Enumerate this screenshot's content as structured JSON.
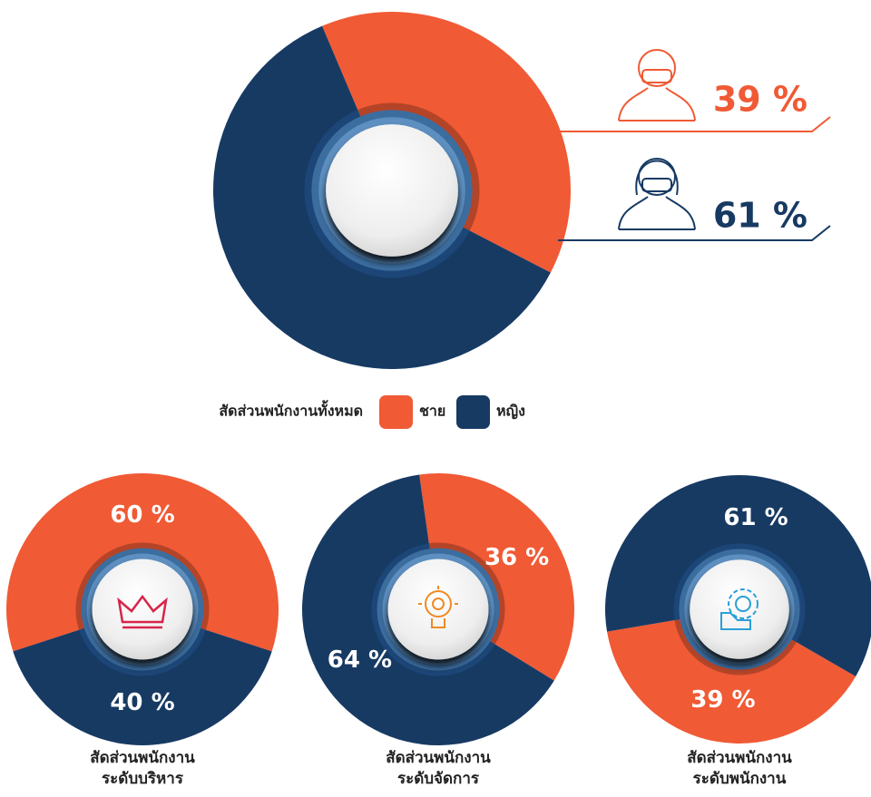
{
  "chart_data": [
    {
      "type": "pie",
      "title": "สัดส่วนพนักงานทั้งหมด",
      "categories": [
        "ชาย",
        "หญิง"
      ],
      "values": [
        39,
        61
      ],
      "value_labels": [
        "39 %",
        "61 %"
      ],
      "colors": [
        "#f05a35",
        "#173a63"
      ],
      "legend": "bottom"
    },
    {
      "type": "pie",
      "title": [
        "สัดส่วนพนักงาน",
        "ระดับบริหาร"
      ],
      "values": [
        60,
        40
      ],
      "value_labels": [
        "60 %",
        "40 %"
      ],
      "colors": [
        "#f05a35",
        "#173a63"
      ]
    },
    {
      "type": "pie",
      "title": [
        "สัดส่วนพนักงาน",
        "ระดับจัดการ"
      ],
      "values": [
        36,
        64
      ],
      "value_labels": [
        "36 %",
        "64 %"
      ],
      "colors": [
        "#f05a35",
        "#173a63"
      ]
    },
    {
      "type": "pie",
      "title": [
        "สัดส่วนพนักงาน",
        "ระดับพนักงาน"
      ],
      "values": [
        39,
        61
      ],
      "value_labels": [
        "39 %",
        "61 %"
      ],
      "colors": [
        "#f05a35",
        "#173a63"
      ]
    }
  ]
}
